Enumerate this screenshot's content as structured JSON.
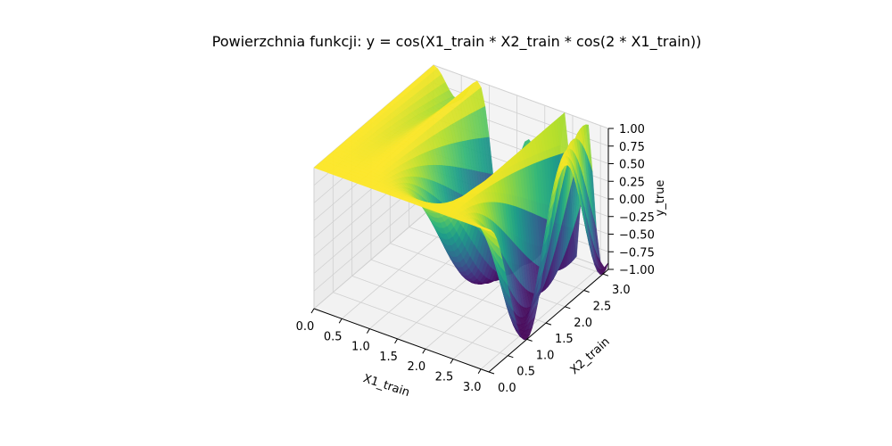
{
  "chart_data": {
    "type": "surface3d",
    "title": "Powierzchnia funkcji: y = cos(X1_train * X2_train * cos(2 * X1_train))",
    "xlabel": "X1_train",
    "ylabel": "X2_train",
    "zlabel": "y_true",
    "function": "cos(X1_train * X2_train * cos(2 * X1_train))",
    "xlim": [
      0,
      3.14159
    ],
    "ylim": [
      0,
      3.14159
    ],
    "zlim": [
      -1,
      1
    ],
    "x_ticks": [
      "0.0",
      "0.5",
      "1.0",
      "1.5",
      "2.0",
      "2.5",
      "3.0"
    ],
    "y_ticks": [
      "0.0",
      "0.5",
      "1.0",
      "1.5",
      "2.0",
      "2.5",
      "3.0"
    ],
    "z_ticks": [
      "−1.00",
      "−0.75",
      "−0.50",
      "−0.25",
      "0.00",
      "0.25",
      "0.50",
      "0.75",
      "1.00"
    ],
    "z_tick_values": [
      -1,
      -0.75,
      -0.5,
      -0.25,
      0,
      0.25,
      0.5,
      0.75,
      1
    ],
    "colormap": "viridis",
    "grid": true
  }
}
